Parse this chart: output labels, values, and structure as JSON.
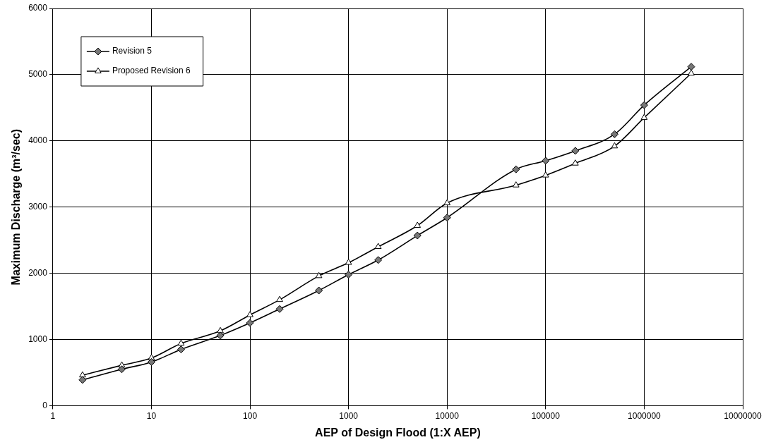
{
  "chart_data": {
    "type": "line",
    "xlabel": "AEP of Design Flood (1:X AEP)",
    "ylabel": "Maximum Discharge (m³/sec)",
    "log": "x",
    "x": [
      2,
      5,
      10,
      20,
      50,
      100,
      200,
      500,
      1000,
      2000,
      5000,
      10000,
      50000,
      100000,
      200000,
      500000,
      1000000,
      3000000
    ],
    "xlim": [
      1,
      10000000
    ],
    "xticks": [
      1,
      10,
      100,
      1000,
      10000,
      100000,
      1000000,
      10000000
    ],
    "ylim": [
      0,
      6000
    ],
    "yticks": [
      0,
      1000,
      2000,
      3000,
      4000,
      5000,
      6000
    ],
    "grid": true,
    "legend": "top left",
    "line_style": "solid",
    "series": [
      {
        "name": "Revision 5",
        "color": "#000000",
        "marker": "diamond",
        "values": [
          390,
          550,
          660,
          850,
          1060,
          1250,
          1460,
          1740,
          1980,
          2200,
          2570,
          2840,
          3570,
          3700,
          3850,
          4100,
          4540,
          5120
        ]
      },
      {
        "name": "Proposed Revision 6",
        "color": "#000000",
        "marker": "triangle",
        "values": [
          460,
          610,
          720,
          940,
          1130,
          1370,
          1600,
          1960,
          2160,
          2400,
          2720,
          3060,
          3330,
          3480,
          3660,
          3920,
          4350,
          5020
        ]
      }
    ]
  }
}
